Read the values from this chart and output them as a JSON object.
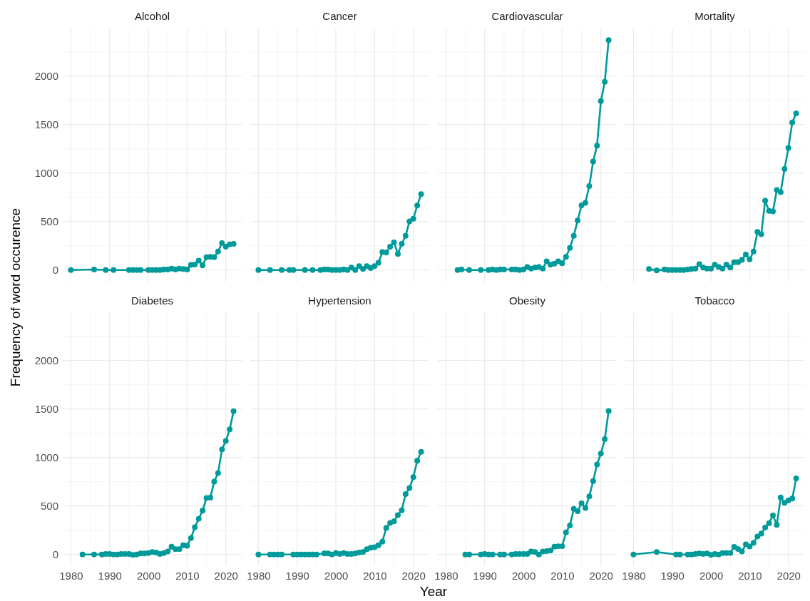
{
  "chart_data": [
    {
      "type": "line",
      "title": "Alcohol",
      "x": [
        1980,
        1986,
        1989,
        1991,
        1995,
        1996,
        1997,
        1998,
        2000,
        2001,
        2002,
        2003,
        2004,
        2005,
        2006,
        2007,
        2008,
        2009,
        2010,
        2011,
        2012,
        2013,
        2014,
        2015,
        2016,
        2017,
        2018,
        2019,
        2020,
        2021,
        2022
      ],
      "series": [
        {
          "color": "#009a9a",
          "values": [
            0,
            5,
            0,
            0,
            0,
            0,
            0,
            0,
            0,
            0,
            0,
            0,
            5,
            5,
            15,
            5,
            15,
            10,
            5,
            52,
            57,
            97,
            48,
            132,
            135,
            132,
            190,
            278,
            240,
            265,
            270
          ]
        }
      ],
      "xlim": [
        1977.9,
        2024.1
      ],
      "xticks": [
        1980,
        1990,
        2000,
        2010,
        2020
      ],
      "ylim": [
        -120,
        2490
      ],
      "yticks": [
        0,
        500,
        1000,
        1500,
        2000
      ],
      "tick_labels": "y",
      "grid": true,
      "marker": "circle",
      "line_style": "solid"
    },
    {
      "type": "line",
      "title": "Cancer",
      "x": [
        1980,
        1983,
        1986,
        1988,
        1989,
        1992,
        1994,
        1996,
        1997,
        1998,
        1999,
        2000,
        2001,
        2002,
        2003,
        2004,
        2005,
        2006,
        2007,
        2008,
        2009,
        2010,
        2011,
        2012,
        2013,
        2014,
        2015,
        2016,
        2017,
        2018,
        2019,
        2020,
        2021,
        2022
      ],
      "series": [
        {
          "color": "#009a9a",
          "values": [
            0,
            0,
            0,
            0,
            0,
            0,
            0,
            0,
            5,
            5,
            0,
            0,
            0,
            5,
            0,
            25,
            0,
            40,
            10,
            40,
            20,
            40,
            75,
            185,
            180,
            240,
            285,
            165,
            270,
            352,
            502,
            528,
            665,
            782
          ]
        }
      ],
      "xlim": [
        1977.9,
        2024.1
      ],
      "xticks": [
        1980,
        1990,
        2000,
        2010,
        2020
      ],
      "ylim": [
        -120,
        2490
      ],
      "yticks": [
        0,
        500,
        1000,
        1500,
        2000
      ],
      "tick_labels": false,
      "grid": true,
      "marker": "circle",
      "line_style": "solid"
    },
    {
      "type": "line",
      "title": "Cardiovascular",
      "x": [
        1983,
        1984,
        1986,
        1989,
        1991,
        1992,
        1993,
        1994,
        1995,
        1997,
        1998,
        1999,
        2000,
        2001,
        2002,
        2003,
        2004,
        2005,
        2006,
        2007,
        2008,
        2009,
        2010,
        2011,
        2012,
        2013,
        2014,
        2015,
        2016,
        2017,
        2018,
        2019,
        2020,
        2021,
        2022
      ],
      "series": [
        {
          "color": "#009a9a",
          "values": [
            0,
            5,
            0,
            0,
            0,
            5,
            0,
            5,
            5,
            5,
            5,
            0,
            5,
            30,
            15,
            25,
            30,
            15,
            90,
            55,
            65,
            90,
            70,
            135,
            227,
            353,
            510,
            666,
            693,
            866,
            1118,
            1283,
            1742,
            1941,
            2371
          ]
        }
      ],
      "xlim": [
        1977.9,
        2024.1
      ],
      "xticks": [
        1980,
        1990,
        2000,
        2010,
        2020
      ],
      "ylim": [
        -120,
        2490
      ],
      "yticks": [
        0,
        500,
        1000,
        1500,
        2000
      ],
      "tick_labels": false,
      "grid": true,
      "marker": "circle",
      "line_style": "solid"
    },
    {
      "type": "line",
      "title": "Mortality",
      "x": [
        1984,
        1986,
        1988,
        1989,
        1990,
        1991,
        1992,
        1993,
        1994,
        1995,
        1996,
        1997,
        1998,
        1999,
        2000,
        2001,
        2002,
        2003,
        2004,
        2005,
        2006,
        2007,
        2008,
        2009,
        2010,
        2011,
        2012,
        2013,
        2014,
        2015,
        2016,
        2017,
        2018,
        2019,
        2020,
        2021,
        2022
      ],
      "series": [
        {
          "color": "#009a9a",
          "values": [
            10,
            -5,
            5,
            0,
            0,
            0,
            0,
            0,
            5,
            10,
            15,
            60,
            25,
            15,
            15,
            55,
            30,
            15,
            55,
            25,
            80,
            80,
            105,
            160,
            110,
            190,
            392,
            368,
            715,
            609,
            604,
            824,
            802,
            1041,
            1258,
            1522,
            1616
          ]
        }
      ],
      "xlim": [
        1977.9,
        2024.1
      ],
      "xticks": [
        1980,
        1990,
        2000,
        2010,
        2020
      ],
      "ylim": [
        -120,
        2490
      ],
      "yticks": [
        0,
        500,
        1000,
        1500,
        2000
      ],
      "tick_labels": false,
      "grid": true,
      "marker": "circle",
      "line_style": "solid"
    },
    {
      "type": "line",
      "title": "Diabetes",
      "ylabel": "Frequency of word occurence",
      "x": [
        1983,
        1986,
        1988,
        1989,
        1990,
        1991,
        1992,
        1993,
        1994,
        1995,
        1996,
        1997,
        1998,
        1999,
        2000,
        2001,
        2002,
        2003,
        2004,
        2005,
        2006,
        2007,
        2008,
        2009,
        2010,
        2011,
        2012,
        2013,
        2014,
        2015,
        2016,
        2017,
        2018,
        2019,
        2020,
        2021,
        2022
      ],
      "series": [
        {
          "color": "#009a9a",
          "values": [
            0,
            0,
            0,
            5,
            5,
            0,
            0,
            5,
            5,
            5,
            -5,
            0,
            10,
            10,
            15,
            25,
            20,
            5,
            15,
            30,
            80,
            55,
            55,
            95,
            90,
            169,
            281,
            368,
            451,
            583,
            585,
            752,
            839,
            1083,
            1170,
            1290,
            1477
          ]
        }
      ],
      "xlim": [
        1977.9,
        2024.1
      ],
      "xticks": [
        1980,
        1990,
        2000,
        2010,
        2020
      ],
      "ylim": [
        -120,
        2490
      ],
      "yticks": [
        0,
        500,
        1000,
        1500,
        2000
      ],
      "grid": true,
      "marker": "circle",
      "line_style": "solid"
    },
    {
      "type": "line",
      "title": "Hypertension",
      "xlabel": "Year",
      "x": [
        1980,
        1983,
        1984,
        1985,
        1986,
        1989,
        1990,
        1991,
        1992,
        1993,
        1994,
        1995,
        1997,
        1998,
        1999,
        2000,
        2001,
        2002,
        2003,
        2004,
        2005,
        2006,
        2007,
        2008,
        2009,
        2010,
        2011,
        2012,
        2013,
        2014,
        2015,
        2016,
        2017,
        2018,
        2019,
        2020,
        2021,
        2022
      ],
      "series": [
        {
          "color": "#009a9a",
          "values": [
            0,
            0,
            0,
            0,
            0,
            0,
            0,
            0,
            0,
            0,
            0,
            0,
            10,
            10,
            0,
            15,
            5,
            15,
            5,
            5,
            10,
            20,
            25,
            55,
            70,
            75,
            95,
            132,
            274,
            324,
            341,
            406,
            456,
            622,
            685,
            797,
            966,
            1058
          ]
        }
      ],
      "xlim": [
        1977.9,
        2024.1
      ],
      "xticks": [
        1980,
        1990,
        2000,
        2010,
        2020
      ],
      "ylim": [
        -120,
        2490
      ],
      "yticks": [
        0,
        500,
        1000,
        1500,
        2000
      ],
      "tick_labels": "x",
      "grid": true,
      "marker": "circle",
      "line_style": "solid"
    },
    {
      "type": "line",
      "title": "Obesity",
      "x": [
        1985,
        1986,
        1989,
        1990,
        1991,
        1992,
        1994,
        1995,
        1997,
        1998,
        1999,
        2000,
        2001,
        2002,
        2003,
        2004,
        2005,
        2006,
        2007,
        2008,
        2009,
        2010,
        2011,
        2012,
        2013,
        2014,
        2015,
        2016,
        2017,
        2018,
        2019,
        2020,
        2021,
        2022
      ],
      "series": [
        {
          "color": "#009a9a",
          "values": [
            0,
            0,
            0,
            5,
            0,
            0,
            0,
            0,
            0,
            5,
            5,
            5,
            5,
            30,
            25,
            0,
            30,
            35,
            40,
            80,
            85,
            85,
            228,
            299,
            470,
            446,
            527,
            480,
            599,
            757,
            928,
            1040,
            1188,
            1480
          ]
        }
      ],
      "xlim": [
        1977.9,
        2024.1
      ],
      "xticks": [
        1980,
        1990,
        2000,
        2010,
        2020
      ],
      "ylim": [
        -120,
        2490
      ],
      "yticks": [
        0,
        500,
        1000,
        1500,
        2000
      ],
      "tick_labels": "x",
      "grid": true,
      "marker": "circle",
      "line_style": "solid"
    },
    {
      "type": "line",
      "title": "Tobacco",
      "x": [
        1980,
        1986,
        1991,
        1992,
        1994,
        1995,
        1996,
        1997,
        1998,
        1999,
        2000,
        2001,
        2002,
        2003,
        2004,
        2005,
        2006,
        2007,
        2008,
        2009,
        2010,
        2011,
        2012,
        2013,
        2014,
        2015,
        2016,
        2017,
        2018,
        2019,
        2020,
        2021,
        2022
      ],
      "series": [
        {
          "color": "#009a9a",
          "values": [
            0,
            25,
            0,
            0,
            0,
            0,
            5,
            10,
            5,
            10,
            -5,
            5,
            0,
            15,
            15,
            15,
            79,
            57,
            30,
            104,
            82,
            119,
            186,
            215,
            277,
            322,
            403,
            304,
            587,
            532,
            557,
            577,
            785
          ]
        }
      ],
      "xlim": [
        1977.9,
        2024.1
      ],
      "xticks": [
        1980,
        1990,
        2000,
        2010,
        2020
      ],
      "ylim": [
        -120,
        2490
      ],
      "yticks": [
        0,
        500,
        1000,
        1500,
        2000
      ],
      "tick_labels": "x",
      "grid": true,
      "marker": "circle",
      "line_style": "solid"
    }
  ]
}
